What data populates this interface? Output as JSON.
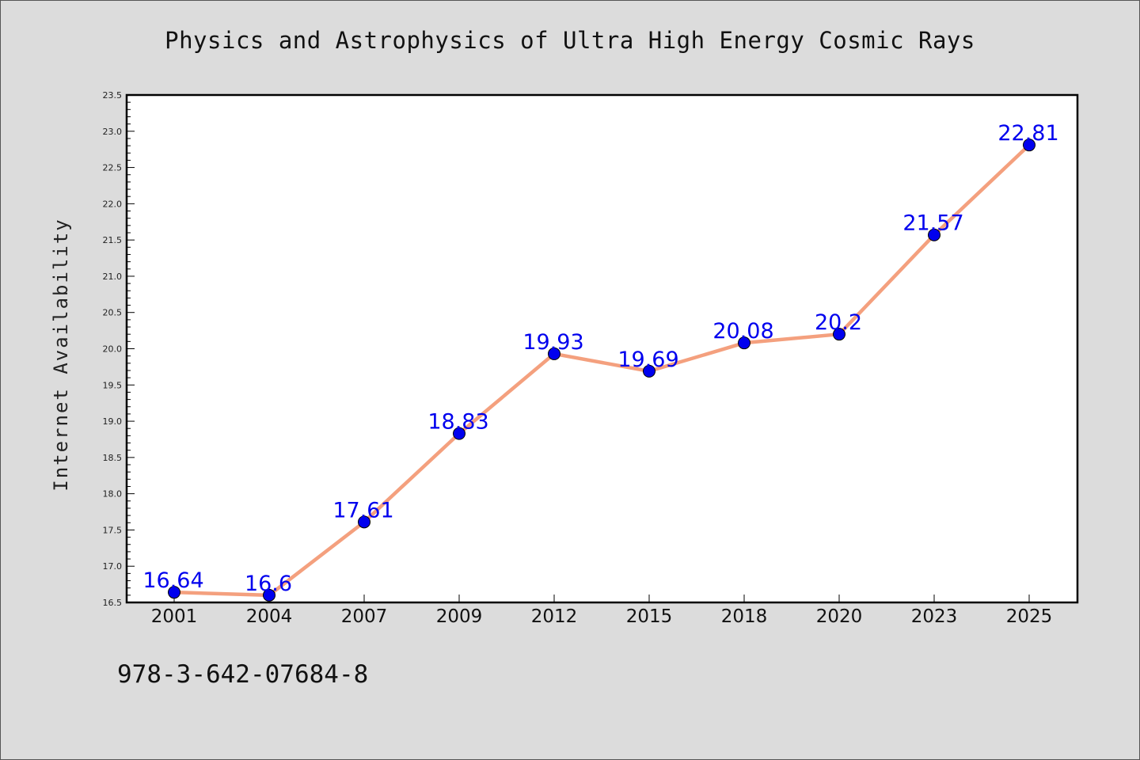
{
  "chart_data": {
    "type": "line",
    "title": "Physics and Astrophysics of Ultra High Energy Cosmic Rays",
    "xlabel": "",
    "ylabel": "Internet Availability",
    "categories": [
      "2001",
      "2004",
      "2007",
      "2009",
      "2012",
      "2015",
      "2018",
      "2020",
      "2023",
      "2025"
    ],
    "values": [
      16.64,
      16.6,
      17.61,
      18.83,
      19.93,
      19.69,
      20.08,
      20.2,
      21.57,
      22.81
    ],
    "data_labels": [
      "16.64",
      "16.6",
      "17.61",
      "18.83",
      "19.93",
      "19.69",
      "20.08",
      "20.2",
      "21.57",
      "22.81"
    ],
    "ylim": [
      16.5,
      23.5
    ],
    "yticks": [
      "16.5",
      "17.0",
      "17.5",
      "18.0",
      "18.5",
      "19.0",
      "19.5",
      "20.0",
      "20.5",
      "21.0",
      "21.5",
      "22.0",
      "22.5",
      "23.0",
      "23.5"
    ],
    "grid": false,
    "line_color": "#f4a07e",
    "marker_color": "#0000ee",
    "label_color": "#0000ee",
    "background_color": "#dcdcdc",
    "plot_background_color": "#ffffff"
  },
  "footnote": "978-3-642-07684-8"
}
